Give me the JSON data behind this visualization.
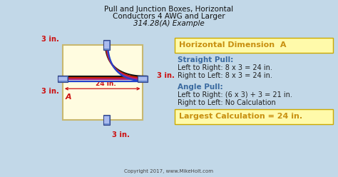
{
  "title_line1": "Pull and Junction Boxes, Horizontal",
  "title_line2": "Conductors 4 AWG and Larger",
  "title_line3": "314.28(A) Example",
  "bg_color": "#c2d8e8",
  "box_fill": "#fffce0",
  "box_edge": "#c8b870",
  "dim_label_color": "#cc1111",
  "heading_color": "#c89010",
  "subheading_color": "#3a6aa0",
  "body_color": "#222222",
  "highlight_bg": "#fffaaa",
  "highlight_edge": "#ccaa00",
  "copyright": "Copyright 2017, www.MikeHolt.com",
  "section_heading": "Horizontal Dimension  A",
  "straight_pull_head": "Straight Pull:",
  "straight_pull_l1": "Left to Right: 8 x 3 = 24 in.",
  "straight_pull_l2": "Right to Left: 8 x 3 = 24 in.",
  "angle_pull_head": "Angle Pull:",
  "angle_pull_l1": "Left to Right: (6 x 3) + 3 = 21 in.",
  "angle_pull_l2": "Right to Left: No Calculation",
  "largest_calc": "Largest Calculation = 24 in.",
  "dim_top": "3 in.",
  "dim_right": "3 in.",
  "dim_left": "3 in.",
  "dim_bottom": "3 in.",
  "dim_a": "24 in.",
  "label_a": "A",
  "conn_color": "#4466cc",
  "conn_face": "#8899dd",
  "wire_colors": [
    "#111111",
    "#cc2200",
    "#aa2288",
    "#2244cc"
  ]
}
